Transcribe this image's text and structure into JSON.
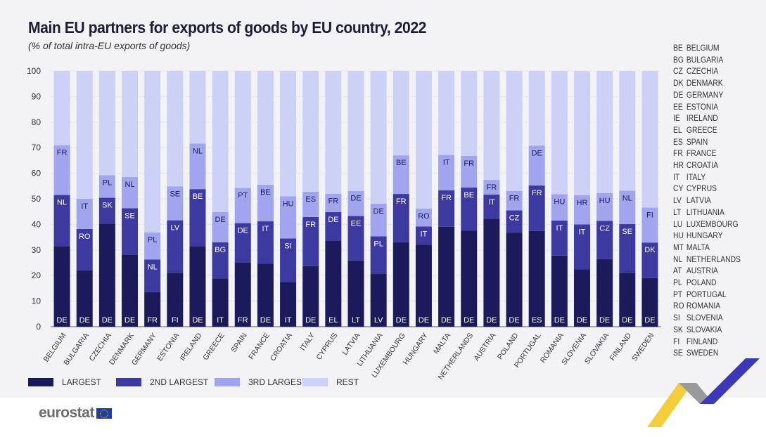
{
  "title": "Main EU partners for exports of goods by EU country, 2022",
  "subtitle": "(% of total intra-EU exports of goods)",
  "colors": {
    "largest": "#1d1a5c",
    "second": "#3c3aa0",
    "third": "#a0a5ee",
    "rest": "#cdd1f8"
  },
  "country_legend": [
    [
      "BE",
      "BELGIUM"
    ],
    [
      "BG",
      "BULGARIA"
    ],
    [
      "CZ",
      "CZECHIA"
    ],
    [
      "DK",
      "DENMARK"
    ],
    [
      "DE",
      "GERMANY"
    ],
    [
      "EE",
      "ESTONIA"
    ],
    [
      "IE",
      "IRELAND"
    ],
    [
      "EL",
      "GREECE"
    ],
    [
      "ES",
      "SPAIN"
    ],
    [
      "FR",
      "FRANCE"
    ],
    [
      "HR",
      "CROATIA"
    ],
    [
      "IT",
      "ITALY"
    ],
    [
      "CY",
      "CYPRUS"
    ],
    [
      "LV",
      "LATVIA"
    ],
    [
      "LT",
      "LITHUANIA"
    ],
    [
      "LU",
      "LUXEMBOURG"
    ],
    [
      "HU",
      "HUNGARY"
    ],
    [
      "MT",
      "MALTA"
    ],
    [
      "NL",
      "NETHERLANDS"
    ],
    [
      "AT",
      "AUSTRIA"
    ],
    [
      "PL",
      "POLAND"
    ],
    [
      "PT",
      "PORTUGAL"
    ],
    [
      "RO",
      "ROMANIA"
    ],
    [
      "SI",
      "SLOVENIA"
    ],
    [
      "SK",
      "SLOVAKIA"
    ],
    [
      "FI",
      "FINLAND"
    ],
    [
      "SE",
      "SWEDEN"
    ]
  ],
  "footer": {
    "logo": "eurostat"
  },
  "chart_data": {
    "type": "bar",
    "stacked": true,
    "ylim": [
      0,
      100
    ],
    "yticks": [
      0,
      10,
      20,
      30,
      40,
      50,
      60,
      70,
      80,
      90,
      100
    ],
    "grid": true,
    "legend_position": "bottom",
    "categories": [
      "BELGIUM",
      "BULGARIA",
      "CZECHIA",
      "DENMARK",
      "GERMANY",
      "ESTONIA",
      "IRELAND",
      "GREECE",
      "SPAIN",
      "FRANCE",
      "CROATIA",
      "ITALY",
      "CYPRUS",
      "LATVIA",
      "LITHUANIA",
      "LUXEMBOURG",
      "HUNGARY",
      "MALTA",
      "NETHERLANDS",
      "AUSTRIA",
      "POLAND",
      "PORTUGAL",
      "ROMANIA",
      "SLOVENIA",
      "SLOVAKIA",
      "FINLAND",
      "SWEDEN"
    ],
    "series": [
      {
        "name": "LARGEST",
        "values": [
          31.5,
          22,
          40.3,
          28.2,
          13.5,
          21.1,
          31.5,
          18.8,
          25,
          24.6,
          17.5,
          23.7,
          33.7,
          25.9,
          20.6,
          33,
          32.1,
          39.1,
          37.5,
          42.2,
          36.9,
          37.4,
          27.8,
          22.4,
          26.4,
          21.1,
          19
        ],
        "partners": [
          "DE",
          "DE",
          "DE",
          "DE",
          "FR",
          "FI",
          "DE",
          "IT",
          "FR",
          "DE",
          "IT",
          "DE",
          "EL",
          "LT",
          "LV",
          "DE",
          "DE",
          "DE",
          "DE",
          "DE",
          "DE",
          "ES",
          "DE",
          "DE",
          "DE",
          "DE",
          "DE"
        ]
      },
      {
        "name": "2ND LARGEST",
        "values": [
          20,
          16.2,
          10.1,
          18.1,
          12.8,
          20.5,
          22.3,
          14.2,
          15.5,
          16.6,
          17,
          19.2,
          11.1,
          17.4,
          14.7,
          18.9,
          7.1,
          14.2,
          16.9,
          9.5,
          8.6,
          17.8,
          13.7,
          17.6,
          15,
          19,
          13.9
        ],
        "partners": [
          "NL",
          "RO",
          "SK",
          "SE",
          "NL",
          "LV",
          "BE",
          "BG",
          "DE",
          "IT",
          "SI",
          "FR",
          "DE",
          "EE",
          "PL",
          "FR",
          "IT",
          "FR",
          "BE",
          "IT",
          "CZ",
          "FR",
          "IT",
          "IT",
          "CZ",
          "SE",
          "DK"
        ]
      },
      {
        "name": "3RD LARGEST",
        "values": [
          19.5,
          11.8,
          8.8,
          12.2,
          10.6,
          13.2,
          17.8,
          11.8,
          13.8,
          14.3,
          16.5,
          9.9,
          7.2,
          9.8,
          12.8,
          15.1,
          7,
          13.9,
          12.4,
          5.7,
          7.6,
          15.6,
          10.3,
          11.4,
          10.8,
          13.1,
          13.7
        ],
        "partners": [
          "FR",
          "IT",
          "PL",
          "NL",
          "PL",
          "SE",
          "NL",
          "DE",
          "PT",
          "BE",
          "HU",
          "ES",
          "FR",
          "DE",
          "DE",
          "BE",
          "RO",
          "IT",
          "FR",
          "FR",
          "FR",
          "DE",
          "HU",
          "HR",
          "HU",
          "NL",
          "FI"
        ]
      },
      {
        "name": "REST",
        "values": [
          29,
          50,
          40.8,
          41.5,
          63.1,
          45.2,
          28.4,
          55.2,
          45.7,
          44.5,
          49,
          47.2,
          48,
          46.9,
          51.9,
          33,
          53.8,
          32.8,
          33.2,
          42.6,
          46.9,
          29.2,
          48.2,
          48.6,
          47.8,
          46.8,
          53.4
        ]
      }
    ]
  }
}
